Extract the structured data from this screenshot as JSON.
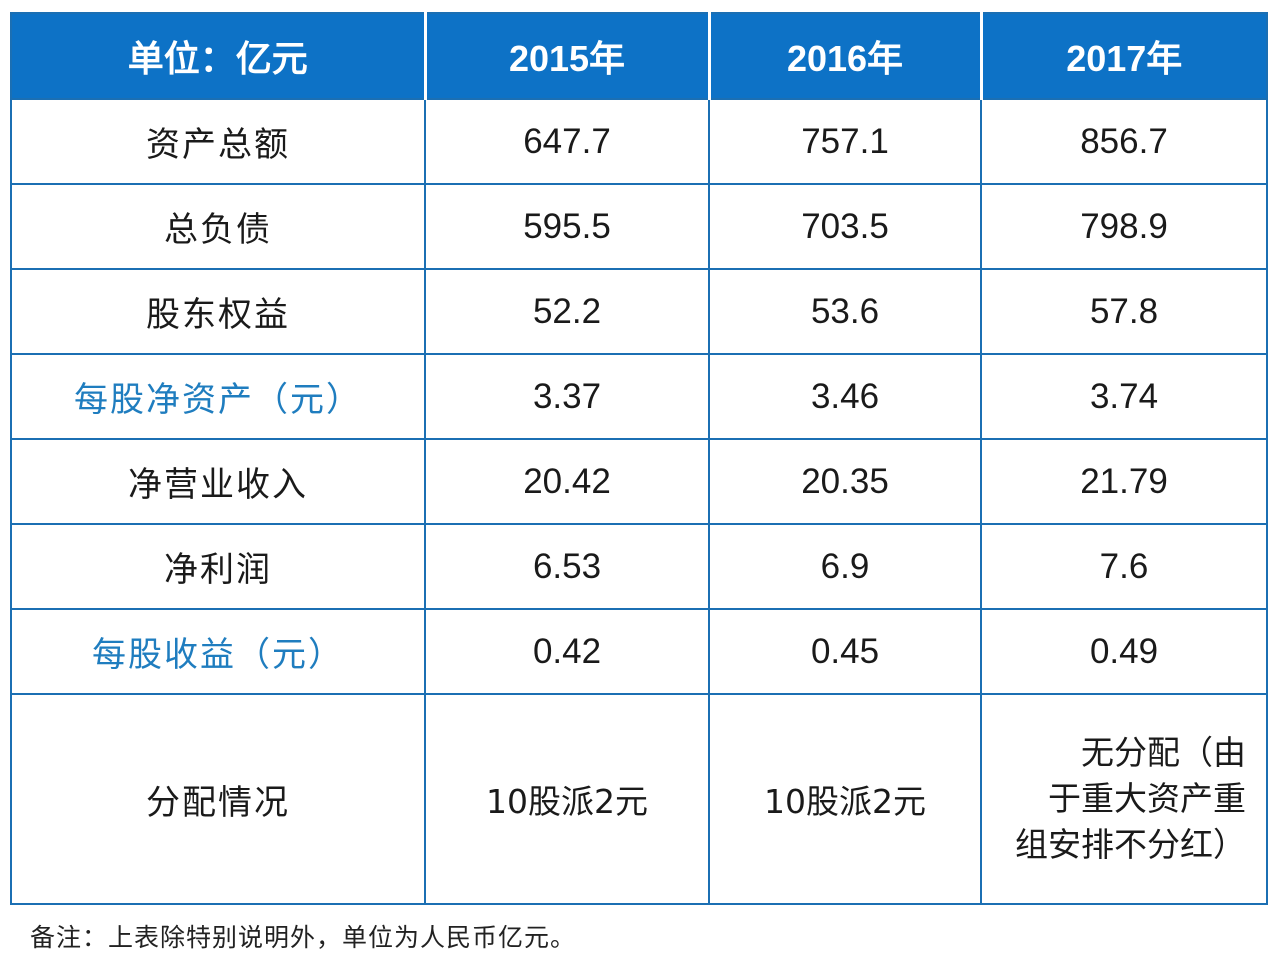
{
  "table": {
    "header": {
      "unit_label": "单位：亿元",
      "years": [
        "2015年",
        "2016年",
        "2017年"
      ]
    },
    "rows": [
      {
        "label": "资产总额",
        "values": [
          "647.7",
          "757.1",
          "856.7"
        ]
      },
      {
        "label": "总负债",
        "values": [
          "595.5",
          "703.5",
          "798.9"
        ]
      },
      {
        "label": "股东权益",
        "values": [
          "52.2",
          "53.6",
          "57.8"
        ]
      },
      {
        "label": "每股净资产（元）",
        "values": [
          "3.37",
          "3.46",
          "3.74"
        ]
      },
      {
        "label": "净营业收入",
        "values": [
          "20.42",
          "20.35",
          "21.79"
        ]
      },
      {
        "label": "净利润",
        "values": [
          "6.53",
          "6.9",
          "7.6"
        ]
      },
      {
        "label": "每股收益（元）",
        "values": [
          "0.42",
          "0.45",
          "0.49"
        ]
      }
    ],
    "distribution": {
      "label": "分配情况",
      "values": [
        "10股派2元",
        "10股派2元"
      ],
      "value_2017_lines": [
        "无分配（由",
        "于重大资产重",
        "组安排不分红）"
      ]
    }
  },
  "footnote": "备注：上表除特别说明外，单位为人民币亿元。",
  "colors": {
    "header_background": "#0d72c6",
    "border": "#1b6fb3",
    "accent_label_text": "#1f7dbf"
  }
}
